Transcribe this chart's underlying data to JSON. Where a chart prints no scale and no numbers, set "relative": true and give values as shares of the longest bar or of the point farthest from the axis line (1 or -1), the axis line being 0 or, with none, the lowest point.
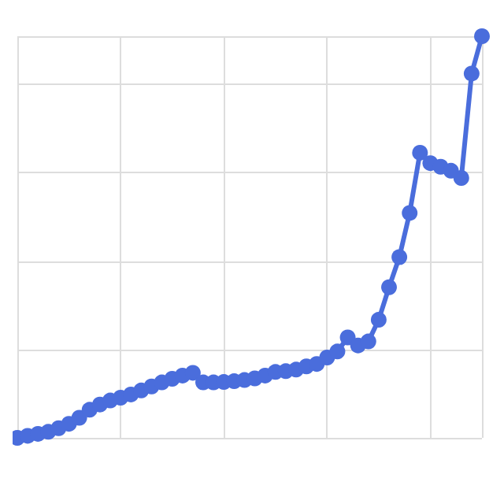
{
  "chart_data": {
    "type": "line",
    "relative": true,
    "grid": true,
    "marker": "circle",
    "line_style": "solid",
    "categories": [
      null,
      null,
      null,
      null,
      null,
      null,
      null,
      null,
      null,
      null,
      null,
      null,
      null,
      null,
      null,
      null,
      null,
      null,
      null,
      null,
      null,
      null,
      null,
      null,
      null,
      null,
      null,
      null,
      null,
      null,
      null,
      null,
      null,
      null,
      null,
      null,
      null,
      null,
      null,
      null,
      null,
      null,
      null,
      null,
      null,
      null
    ],
    "series": [
      {
        "color": "#4a6ddc",
        "values": [
          0,
          0.005,
          0.01,
          0.015,
          0.024,
          0.035,
          0.05,
          0.07,
          0.083,
          0.093,
          0.1,
          0.108,
          0.118,
          0.128,
          0.138,
          0.147,
          0.155,
          0.162,
          0.138,
          0.138,
          0.139,
          0.141,
          0.144,
          0.148,
          0.155,
          0.164,
          0.166,
          0.17,
          0.178,
          0.184,
          0.2,
          0.215,
          0.25,
          0.23,
          0.24,
          0.294,
          0.375,
          0.45,
          0.56,
          0.71,
          0.684,
          0.675,
          0.665,
          0.647,
          0.907,
          1
        ]
      }
    ]
  }
}
